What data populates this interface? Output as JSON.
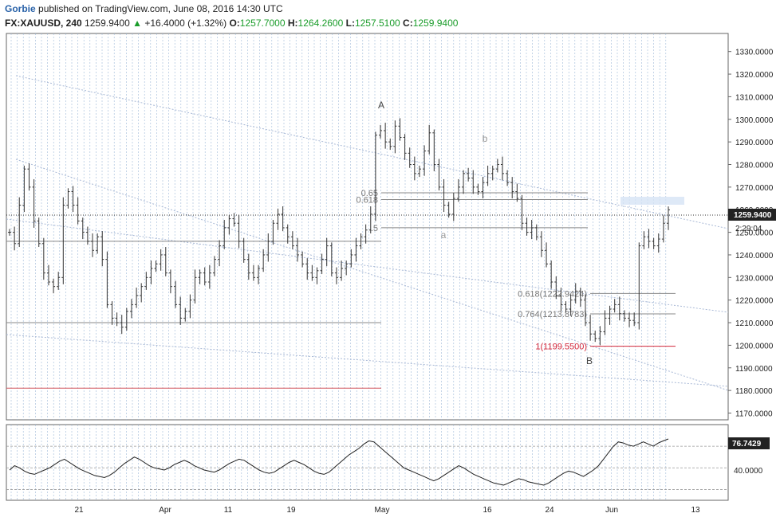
{
  "header": {
    "author": "Gorbie",
    "published": "published on TradingView.com, June 08, 2016 14:30 UTC",
    "symbol": "FX:XAUUSD, 240",
    "last": "1259.9400",
    "change": "+16.4000 (+1.32%)",
    "o_label": "O:",
    "o_value": "1257.7000",
    "h_label": "H:",
    "h_value": "1264.2600",
    "l_label": "L:",
    "l_value": "1257.5100",
    "c_label": "C:",
    "c_value": "1259.9400"
  },
  "chart_data": [
    {
      "type": "candlestick",
      "symbol": "FX:XAUUSD",
      "timeframe": "240",
      "y_ticks": [
        "1330.0000",
        "1320.0000",
        "1310.0000",
        "1300.0000",
        "1290.0000",
        "1280.0000",
        "1270.0000",
        "1260.0000",
        "1250.0000",
        "1240.0000",
        "1230.0000",
        "1220.0000",
        "1210.0000",
        "1200.0000",
        "1190.0000",
        "1180.0000",
        "1170.0000"
      ],
      "ylim": [
        1167,
        1338
      ],
      "x_ticks": [
        "21",
        "Apr",
        "11",
        "19",
        "May",
        "16",
        "24",
        "Jun",
        "13"
      ],
      "last_price_label": "1259.9400",
      "countdown_label": "2:29:04",
      "series": [
        {
          "values": [
            1250,
            1245,
            1262,
            1278,
            1270,
            1255,
            1245,
            1232,
            1228,
            1226,
            1230,
            1262,
            1268,
            1262,
            1255,
            1250,
            1246,
            1242,
            1248,
            1238,
            1218,
            1212,
            1210,
            1208,
            1215,
            1218,
            1222,
            1226,
            1230,
            1234,
            1236,
            1240,
            1232,
            1226,
            1218,
            1212,
            1215,
            1220,
            1230,
            1232,
            1228,
            1232,
            1238,
            1244,
            1252,
            1256,
            1254,
            1246,
            1238,
            1232,
            1230,
            1234,
            1240,
            1246,
            1254,
            1258,
            1252,
            1248,
            1244,
            1240,
            1236,
            1232,
            1230,
            1233,
            1238,
            1244,
            1232,
            1230,
            1234,
            1236,
            1240,
            1244,
            1248,
            1251,
            1258,
            1293,
            1295,
            1290,
            1288,
            1297,
            1292,
            1285,
            1280,
            1276,
            1278,
            1286,
            1294,
            1280,
            1270,
            1262,
            1258,
            1265,
            1270,
            1276,
            1274,
            1270,
            1268,
            1272,
            1276,
            1278,
            1280,
            1276,
            1272,
            1268,
            1265,
            1254,
            1250,
            1252,
            1248,
            1242,
            1236,
            1228,
            1222,
            1218,
            1216,
            1220,
            1224,
            1220,
            1210,
            1205,
            1203,
            1206,
            1212,
            1216,
            1218,
            1214,
            1212,
            1211,
            1210,
            1244,
            1248,
            1246,
            1244,
            1247,
            1254,
            1259.94
          ]
        }
      ],
      "fib_levels": [
        {
          "label": "0.65",
          "value": 1267.5
        },
        {
          "label": "0.618",
          "value": 1264.5
        },
        {
          "label": ".5",
          "value": 1252.0
        }
      ],
      "fib_levels_2": [
        {
          "label": "0.618(1222.9424)",
          "value": 1222.94
        },
        {
          "label": "0.764(1213.8783)",
          "value": 1213.88
        },
        {
          "label": "1(1199.5500)",
          "value": 1199.55
        }
      ],
      "wave_labels": [
        {
          "text": "A",
          "color": "#444444"
        },
        {
          "text": "b",
          "color": "#999999"
        },
        {
          "text": "a",
          "color": "#999999"
        },
        {
          "text": "B",
          "color": "#444444"
        }
      ],
      "horizontal_levels": [
        1246,
        1210,
        1181
      ]
    },
    {
      "type": "line",
      "indicator": "RSI",
      "y_ticks": [
        "40.0000"
      ],
      "last_value_label": "76.7429",
      "guide_values": [
        70,
        50,
        30
      ],
      "series": [
        {
          "values": [
            48,
            52,
            50,
            47,
            45,
            44,
            46,
            48,
            50,
            53,
            56,
            58,
            55,
            52,
            49,
            47,
            45,
            43,
            42,
            41,
            43,
            46,
            50,
            54,
            57,
            60,
            58,
            55,
            52,
            50,
            49,
            48,
            50,
            53,
            55,
            57,
            55,
            52,
            50,
            48,
            47,
            46,
            48,
            51,
            54,
            56,
            58,
            57,
            54,
            51,
            48,
            46,
            45,
            46,
            49,
            52,
            55,
            57,
            55,
            53,
            50,
            47,
            45,
            44,
            46,
            50,
            54,
            58,
            62,
            65,
            68,
            72,
            75,
            74,
            70,
            66,
            62,
            58,
            54,
            50,
            48,
            46,
            44,
            42,
            40,
            38,
            40,
            43,
            46,
            49,
            52,
            50,
            47,
            44,
            42,
            40,
            38,
            36,
            35,
            34,
            36,
            38,
            40,
            39,
            37,
            36,
            35,
            34,
            36,
            39,
            42,
            45,
            47,
            46,
            44,
            42,
            45,
            48,
            52,
            58,
            64,
            70,
            74,
            73,
            71,
            70,
            72,
            74,
            72,
            70,
            73,
            75,
            76.7429
          ]
        }
      ]
    }
  ]
}
